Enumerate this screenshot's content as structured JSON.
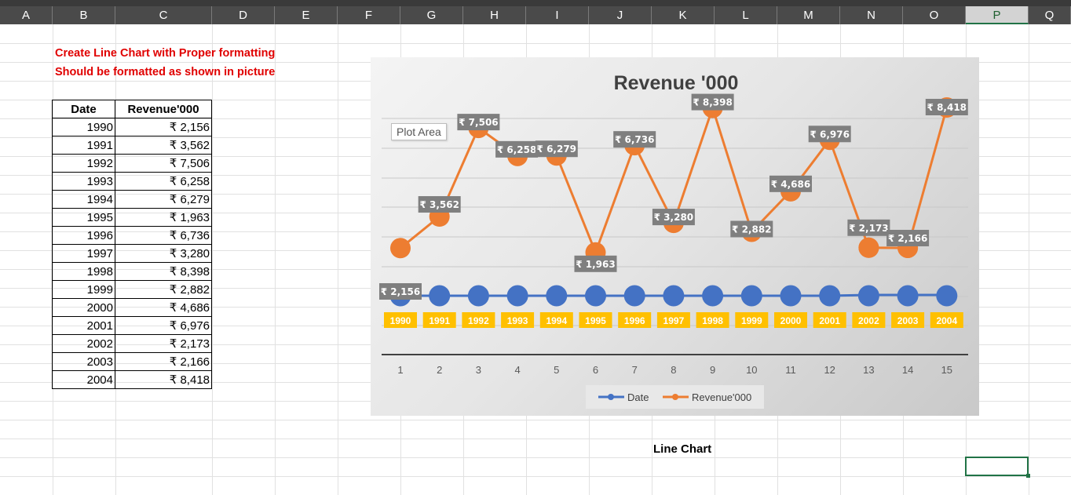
{
  "columns": [
    "A",
    "B",
    "C",
    "D",
    "E",
    "F",
    "G",
    "H",
    "I",
    "J",
    "K",
    "L",
    "M",
    "N",
    "O",
    "P",
    "Q"
  ],
  "selected_column": "P",
  "notes": [
    "Create Line Chart with Proper formatting",
    "Should be formatted as shown in picture"
  ],
  "table": {
    "headers": [
      "Date",
      "Revenue'000"
    ],
    "rows": [
      [
        "1990",
        "₹ 2,156"
      ],
      [
        "1991",
        "₹ 3,562"
      ],
      [
        "1992",
        "₹ 7,506"
      ],
      [
        "1993",
        "₹ 6,258"
      ],
      [
        "1994",
        "₹ 6,279"
      ],
      [
        "1995",
        "₹ 1,963"
      ],
      [
        "1996",
        "₹ 6,736"
      ],
      [
        "1997",
        "₹ 3,280"
      ],
      [
        "1998",
        "₹ 8,398"
      ],
      [
        "1999",
        "₹ 2,882"
      ],
      [
        "2000",
        "₹ 4,686"
      ],
      [
        "2001",
        "₹ 6,976"
      ],
      [
        "2002",
        "₹ 2,173"
      ],
      [
        "2003",
        "₹ 2,166"
      ],
      [
        "2004",
        "₹ 8,418"
      ]
    ]
  },
  "tooltip": "Plot Area",
  "caption": "Line Chart",
  "colors": {
    "date_series": "#4472c4",
    "revenue_series": "#ed7d31",
    "date_label_bg": "#ffc000",
    "value_label_bg": "#7f7f7f",
    "note_text": "#e00000"
  },
  "chart_data": {
    "type": "line",
    "title": "Revenue '000",
    "x": [
      1,
      2,
      3,
      4,
      5,
      6,
      7,
      8,
      9,
      10,
      11,
      12,
      13,
      14,
      15
    ],
    "series": [
      {
        "name": "Date",
        "values": [
          1990,
          1991,
          1992,
          1993,
          1994,
          1995,
          1996,
          1997,
          1998,
          1999,
          2000,
          2001,
          2002,
          2003,
          2004
        ],
        "labels": [
          "1990",
          "1991",
          "1992",
          "1993",
          "1994",
          "1995",
          "1996",
          "1997",
          "1998",
          "1999",
          "2000",
          "2001",
          "2002",
          "2003",
          "2004"
        ]
      },
      {
        "name": "Revenue'000",
        "values": [
          2156,
          3562,
          7506,
          6258,
          6279,
          1963,
          6736,
          3280,
          8398,
          2882,
          4686,
          6976,
          2173,
          2166,
          8418
        ],
        "labels": [
          "₹ 2,156",
          "₹ 3,562",
          "₹ 7,506",
          "₹ 6,258",
          "₹ 6,279",
          "₹ 1,963",
          "₹ 6,736",
          "₹ 3,280",
          "₹ 8,398",
          "₹ 2,882",
          "₹ 4,686",
          "₹ 6,976",
          "₹ 2,173",
          "₹ 2,166",
          "₹ 8,418"
        ]
      }
    ],
    "legend": "bottom",
    "grid": true
  }
}
